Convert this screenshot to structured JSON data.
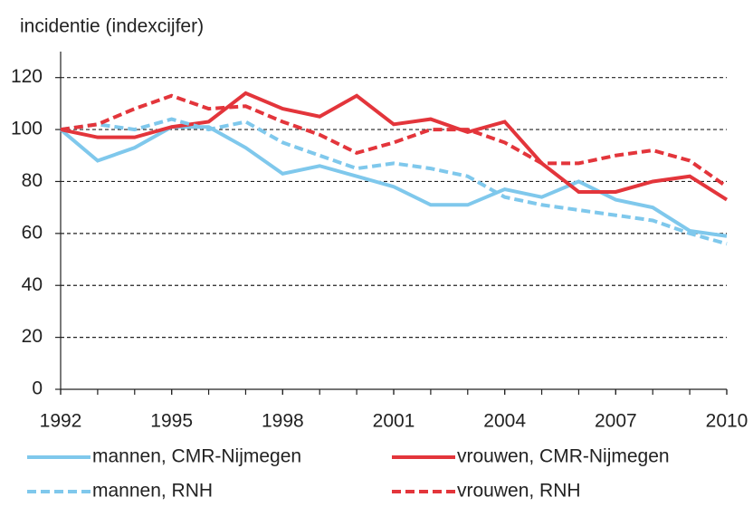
{
  "chart_data": {
    "type": "line",
    "title": "incidentie (indexcijfer)",
    "x": [
      1992,
      1993,
      1994,
      1995,
      1996,
      1997,
      1998,
      1999,
      2000,
      2001,
      2002,
      2003,
      2004,
      2005,
      2006,
      2007,
      2008,
      2009,
      2010
    ],
    "xlim": [
      1992,
      2010
    ],
    "xticks": [
      1992,
      1995,
      1998,
      2001,
      2004,
      2007,
      2010
    ],
    "ylim": [
      0,
      130
    ],
    "yticks": [
      0,
      20,
      40,
      60,
      80,
      100,
      120
    ],
    "grid": true,
    "legend": "bottom",
    "series": [
      {
        "name": "mannen, CMR-Nijmegen",
        "color": "#7fc8ec",
        "dashed": false,
        "values": [
          100,
          88,
          93,
          101,
          101,
          93,
          83,
          86,
          82,
          78,
          71,
          71,
          77,
          74,
          80,
          73,
          70,
          61,
          59
        ]
      },
      {
        "name": "vrouwen, CMR-Nijmegen",
        "color": "#e3353b",
        "dashed": false,
        "values": [
          100,
          97,
          97,
          101,
          103,
          114,
          108,
          105,
          113,
          102,
          104,
          99,
          103,
          87,
          76,
          76,
          80,
          82,
          73
        ]
      },
      {
        "name": "mannen, RNH",
        "color": "#7fc8ec",
        "dashed": true,
        "values": [
          100,
          102,
          100,
          104,
          100,
          103,
          95,
          90,
          85,
          87,
          85,
          82,
          74,
          71,
          69,
          67,
          65,
          60,
          56
        ]
      },
      {
        "name": "vrouwen, RNH",
        "color": "#e3353b",
        "dashed": true,
        "values": [
          100,
          102,
          108,
          113,
          108,
          109,
          103,
          98,
          91,
          95,
          100,
          100,
          95,
          87,
          87,
          90,
          92,
          88,
          78
        ]
      }
    ]
  }
}
